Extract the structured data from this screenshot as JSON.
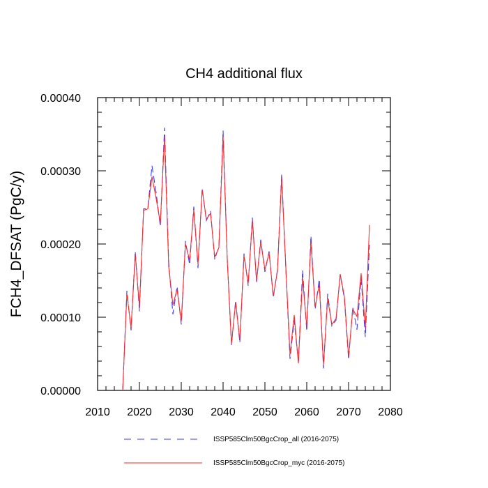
{
  "chart_data": {
    "type": "line",
    "title": "CH4 additional flux",
    "xlabel": "",
    "ylabel": "FCH4_DFSAT  (PgC/y)",
    "xlim": [
      2010,
      2080
    ],
    "ylim": [
      0.0,
      0.0004
    ],
    "x_ticks": [
      2010,
      2020,
      2030,
      2040,
      2050,
      2060,
      2070,
      2080
    ],
    "x_tick_labels": [
      "2010",
      "2020",
      "2030",
      "2040",
      "2050",
      "2060",
      "2070",
      "2080"
    ],
    "y_ticks": [
      0.0,
      0.0001,
      0.0002,
      0.0003,
      0.0004
    ],
    "y_tick_labels": [
      "0.00000",
      "0.00010",
      "0.00020",
      "0.00030",
      "0.00040"
    ],
    "grid": false,
    "legend_position": "bottom",
    "series": [
      {
        "name": "ISSP585Clm50BgcCrop_all (2016-2075)",
        "color": "#3c3cff",
        "line_style": "dashed",
        "x": [
          2016,
          2017,
          2018,
          2019,
          2020,
          2021,
          2022,
          2023,
          2024,
          2025,
          2026,
          2027,
          2028,
          2029,
          2030,
          2031,
          2032,
          2033,
          2034,
          2035,
          2036,
          2037,
          2038,
          2039,
          2040,
          2041,
          2042,
          2043,
          2044,
          2045,
          2046,
          2047,
          2048,
          2049,
          2050,
          2051,
          2052,
          2053,
          2054,
          2055,
          2056,
          2057,
          2058,
          2059,
          2060,
          2061,
          2062,
          2063,
          2064,
          2065,
          2066,
          2067,
          2068,
          2069,
          2070,
          2071,
          2072,
          2073,
          2074,
          2075
        ],
        "values": [
          0.0,
          0.000136,
          8.2e-05,
          0.00019,
          0.000108,
          0.000248,
          0.000248,
          0.000307,
          0.00027,
          0.000224,
          0.000359,
          0.000175,
          0.000104,
          0.000142,
          9e-05,
          0.000204,
          0.000172,
          0.000251,
          0.000167,
          0.000276,
          0.000232,
          0.000245,
          0.000179,
          0.000197,
          0.000355,
          0.00018,
          6.2e-05,
          0.000123,
          6.5e-05,
          0.000187,
          0.000143,
          0.000236,
          0.000148,
          0.000206,
          0.000162,
          0.00019,
          0.000127,
          0.000165,
          0.000296,
          0.000166,
          4.3e-05,
          9.6e-05,
          3.9e-05,
          0.000164,
          8.1e-05,
          0.000211,
          0.000111,
          0.000152,
          3e-05,
          0.000132,
          8.8e-05,
          9.6e-05,
          0.000158,
          0.000125,
          4.2e-05,
          0.000114,
          8.3e-05,
          0.000153,
          7.3e-05,
          0.000199
        ]
      },
      {
        "name": "ISSP585Clm50BgcCrop_myc (2016-2075)",
        "color": "#ff2a2a",
        "line_style": "solid",
        "x": [
          2016,
          2017,
          2018,
          2019,
          2020,
          2021,
          2022,
          2023,
          2024,
          2025,
          2026,
          2027,
          2028,
          2029,
          2030,
          2031,
          2032,
          2033,
          2034,
          2035,
          2036,
          2037,
          2038,
          2039,
          2040,
          2041,
          2042,
          2043,
          2044,
          2045,
          2046,
          2047,
          2048,
          2049,
          2050,
          2051,
          2052,
          2053,
          2054,
          2055,
          2056,
          2057,
          2058,
          2059,
          2060,
          2061,
          2062,
          2063,
          2064,
          2065,
          2066,
          2067,
          2068,
          2069,
          2070,
          2071,
          2072,
          2073,
          2074,
          2075
        ],
        "values": [
          0.0,
          0.000132,
          8.5e-05,
          0.000186,
          0.000114,
          0.000246,
          0.000248,
          0.000292,
          0.000262,
          0.000228,
          0.000347,
          0.000169,
          0.000117,
          0.000138,
          9.4e-05,
          0.0002,
          0.000178,
          0.000247,
          0.000172,
          0.000274,
          0.000234,
          0.000242,
          0.000182,
          0.000195,
          0.000347,
          0.000178,
          6.4e-05,
          0.00012,
          6.9e-05,
          0.000184,
          0.000146,
          0.000232,
          0.00015,
          0.000203,
          0.000165,
          0.000188,
          0.000129,
          0.000163,
          0.000291,
          0.000168,
          4.9e-05,
          0.000103,
          3.7e-05,
          0.000153,
          8.7e-05,
          0.000203,
          0.000114,
          0.000145,
          3.5e-05,
          0.000125,
          9e-05,
          9.8e-05,
          0.000159,
          0.000128,
          4.6e-05,
          0.000111,
          0.000101,
          0.00016,
          8.5e-05,
          0.000226
        ]
      }
    ]
  }
}
